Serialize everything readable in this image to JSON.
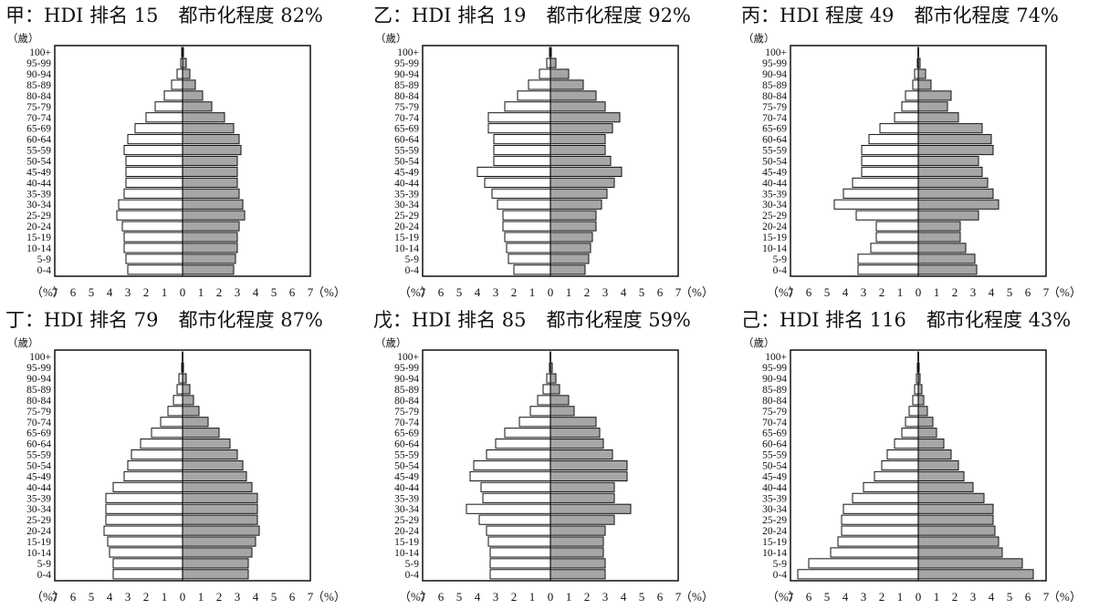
{
  "age_groups": [
    "0-4",
    "5-9",
    "10-14",
    "15-19",
    "20-24",
    "25-29",
    "30-34",
    "35-39",
    "40-44",
    "45-49",
    "50-54",
    "55-59",
    "60-64",
    "65-69",
    "70-74",
    "75-79",
    "80-84",
    "85-89",
    "90-94",
    "95-99",
    "100+"
  ],
  "y_unit": "（歲）",
  "x_unit": "（%）",
  "x_ticks": [
    "7",
    "6",
    "5",
    "4",
    "3",
    "2",
    "1",
    "0",
    "1",
    "2",
    "3",
    "4",
    "5",
    "6",
    "7"
  ],
  "colors": {
    "male_fill": "#ffffff",
    "female_fill": "#a6a6a6",
    "stroke": "#111111"
  },
  "panels": [
    {
      "label": "甲",
      "hdi": "：HDI 排名 15",
      "urban": "都市化程度 82%"
    },
    {
      "label": "乙",
      "hdi": "：HDI 排名 19",
      "urban": "都市化程度 92%"
    },
    {
      "label": "丙",
      "hdi": "：HDI 程度 49",
      "urban": "都市化程度 74%"
    },
    {
      "label": "丁",
      "hdi": "：HDI 排名 79",
      "urban": "都市化程度 87%"
    },
    {
      "label": "戊",
      "hdi": "：HDI 排名 85",
      "urban": "都市化程度 59%"
    },
    {
      "label": "己",
      "hdi": "：HDI 排名 116",
      "urban": "都市化程度 43%"
    }
  ],
  "chart_data": [
    {
      "type": "bar",
      "title": "甲：HDI 排名 15　都市化程度 82%",
      "xlim": [
        -7,
        7
      ],
      "male": [
        3.0,
        3.1,
        3.2,
        3.2,
        3.3,
        3.6,
        3.5,
        3.2,
        3.1,
        3.1,
        3.1,
        3.2,
        3.0,
        2.6,
        2.0,
        1.5,
        1.0,
        0.6,
        0.3,
        0.1,
        0.05
      ],
      "female": [
        2.8,
        2.9,
        3.0,
        3.0,
        3.1,
        3.4,
        3.3,
        3.1,
        3.0,
        3.0,
        3.0,
        3.2,
        3.1,
        2.8,
        2.3,
        1.6,
        1.1,
        0.7,
        0.4,
        0.2,
        0.05
      ]
    },
    {
      "type": "bar",
      "title": "乙：HDI 排名 19　都市化程度 92%",
      "xlim": [
        -7,
        7
      ],
      "male": [
        2.0,
        2.3,
        2.4,
        2.5,
        2.6,
        2.6,
        2.9,
        3.2,
        3.6,
        4.0,
        3.1,
        3.1,
        3.1,
        3.4,
        3.4,
        2.5,
        1.8,
        1.2,
        0.6,
        0.2,
        0.05
      ],
      "female": [
        1.9,
        2.1,
        2.2,
        2.3,
        2.5,
        2.5,
        2.8,
        3.1,
        3.5,
        3.9,
        3.3,
        3.0,
        3.0,
        3.4,
        3.8,
        3.0,
        2.5,
        1.8,
        1.0,
        0.3,
        0.05
      ]
    },
    {
      "type": "bar",
      "title": "丙：HDI 程度 49　都市化程度 74%",
      "xlim": [
        -7,
        7
      ],
      "male": [
        3.3,
        3.3,
        2.6,
        2.3,
        2.3,
        3.4,
        4.6,
        4.1,
        3.6,
        3.1,
        3.1,
        3.1,
        2.7,
        2.1,
        1.3,
        0.9,
        0.7,
        0.3,
        0.2,
        0.05,
        0.02
      ],
      "female": [
        3.2,
        3.1,
        2.6,
        2.3,
        2.3,
        3.3,
        4.4,
        4.1,
        3.8,
        3.5,
        3.3,
        4.1,
        4.0,
        3.5,
        2.2,
        1.6,
        1.8,
        0.7,
        0.4,
        0.1,
        0.02
      ]
    },
    {
      "type": "bar",
      "title": "丁：HDI 排名 79　都市化程度 87%",
      "xlim": [
        -7,
        7
      ],
      "male": [
        3.8,
        3.8,
        4.0,
        4.1,
        4.3,
        4.2,
        4.2,
        4.2,
        3.8,
        3.2,
        3.0,
        2.8,
        2.3,
        1.7,
        1.2,
        0.8,
        0.5,
        0.3,
        0.2,
        0.05,
        0.02
      ],
      "female": [
        3.6,
        3.6,
        3.8,
        4.0,
        4.2,
        4.1,
        4.1,
        4.1,
        3.8,
        3.5,
        3.3,
        3.0,
        2.6,
        2.0,
        1.4,
        0.9,
        0.6,
        0.4,
        0.2,
        0.05,
        0.02
      ]
    },
    {
      "type": "bar",
      "title": "戊：HDI 排名 85　都市化程度 59%",
      "xlim": [
        -7,
        7
      ],
      "male": [
        3.3,
        3.3,
        3.3,
        3.4,
        3.5,
        3.9,
        4.6,
        3.7,
        3.8,
        4.4,
        4.2,
        3.5,
        3.0,
        2.5,
        1.7,
        1.1,
        0.7,
        0.4,
        0.2,
        0.05,
        0.02
      ],
      "female": [
        3.0,
        3.0,
        2.9,
        2.9,
        3.0,
        3.5,
        4.4,
        3.5,
        3.5,
        4.2,
        4.2,
        3.4,
        2.9,
        2.7,
        2.5,
        1.3,
        1.0,
        0.5,
        0.3,
        0.1,
        0.02
      ]
    },
    {
      "type": "bar",
      "title": "己：HDI 排名 116　都市化程度 43%",
      "xlim": [
        -7,
        7
      ],
      "male": [
        6.6,
        6.0,
        4.8,
        4.4,
        4.2,
        4.2,
        4.1,
        3.6,
        3.0,
        2.4,
        2.0,
        1.7,
        1.3,
        0.9,
        0.7,
        0.5,
        0.3,
        0.2,
        0.1,
        0.05,
        0.02
      ],
      "female": [
        6.3,
        5.7,
        4.6,
        4.4,
        4.2,
        4.1,
        4.1,
        3.6,
        3.0,
        2.5,
        2.2,
        1.8,
        1.4,
        1.0,
        0.8,
        0.5,
        0.3,
        0.2,
        0.1,
        0.05,
        0.02
      ]
    }
  ]
}
